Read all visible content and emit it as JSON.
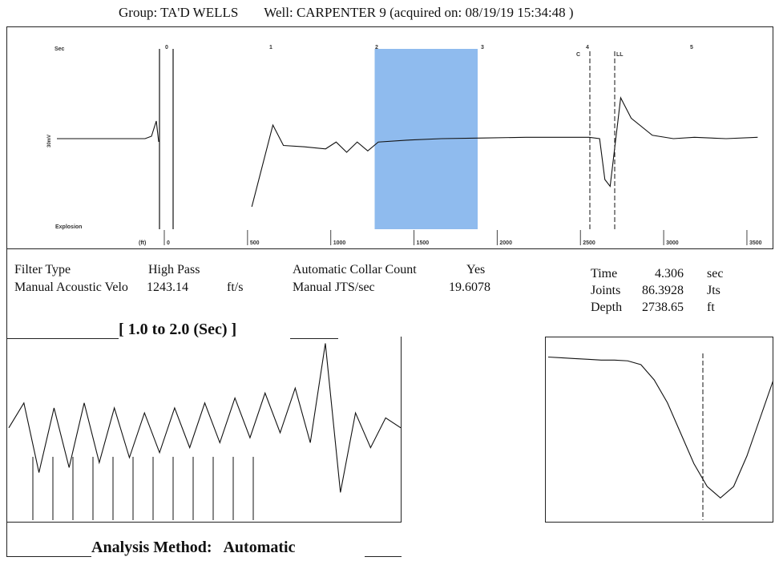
{
  "header": {
    "group_label": "Group: TA'D WELLS",
    "well_label": "Well: CARPENTER 9 (acquired on: 08/19/19 15:34:48 )"
  },
  "params": {
    "filter_type_label": "Filter Type",
    "filter_type_value": "High Pass",
    "manual_velocity_label": "Manual Acoustic Velo",
    "manual_velocity_value": "1243.14",
    "manual_velocity_unit": "ft/s",
    "auto_collar_label": "Automatic Collar Count",
    "auto_collar_value": "Yes",
    "manual_jts_label": "Manual JTS/sec",
    "manual_jts_value": "19.6078",
    "time_label": "Time",
    "time_value": "4.306",
    "time_unit": "sec",
    "joints_label": "Joints",
    "joints_value": "86.3928",
    "joints_unit": "Jts",
    "depth_label": "Depth",
    "depth_value": "2738.65",
    "depth_unit": "ft"
  },
  "zoom": {
    "title": "[ 1.0  to  2.0 (Sec) ]"
  },
  "footer": {
    "analysis_label": "Analysis Method:",
    "analysis_value": "Automatic"
  },
  "chart_data": [
    {
      "type": "line",
      "name": "main-acoustic-trace",
      "top_axis_label": "Sec",
      "top_ticks": [
        "0",
        "1",
        "2",
        "3",
        "4",
        "5"
      ],
      "bottom_axis_label": "(ft)",
      "bottom_ticks": [
        "0",
        "500",
        "1000",
        "1500",
        "2000",
        "2500",
        "3000",
        "3500"
      ],
      "y_label": "30mV",
      "left_annotation": "Explosion",
      "markers": [
        "C",
        "LL"
      ],
      "highlight_seconds": [
        1.0,
        2.0
      ],
      "highlight_color": "#8fbbee",
      "x_seconds": [
        -1.0,
        -0.1,
        0.0,
        0.8,
        1.0,
        1.1,
        1.3,
        1.5,
        1.6,
        1.7,
        1.8,
        1.9,
        2.0,
        2.3,
        2.6,
        3.0,
        3.4,
        3.8,
        4.0,
        4.1,
        4.15,
        4.2,
        4.3,
        4.4,
        4.6,
        4.8,
        5.0,
        5.3,
        5.6
      ],
      "y_values": [
        0.0,
        0.05,
        0.3,
        -1.0,
        0.2,
        -0.1,
        -0.12,
        -0.15,
        -0.05,
        -0.2,
        -0.05,
        -0.18,
        -0.05,
        -0.02,
        0.0,
        0.01,
        0.02,
        0.02,
        0.02,
        0.0,
        -0.6,
        -0.7,
        0.6,
        0.3,
        0.05,
        0.0,
        0.02,
        0.0,
        0.02
      ]
    },
    {
      "type": "line",
      "name": "zoom-trace",
      "x_range_seconds": [
        1.0,
        2.0
      ],
      "collar_marker_count": 12,
      "y_values": [
        0.1,
        0.6,
        -0.8,
        0.5,
        -0.7,
        0.6,
        -0.6,
        0.5,
        -0.5,
        0.4,
        -0.4,
        0.5,
        -0.3,
        0.6,
        -0.2,
        0.7,
        -0.1,
        0.8,
        0.0,
        0.9,
        -0.2,
        1.8,
        -1.2,
        0.4,
        -0.3,
        0.3,
        0.1
      ]
    },
    {
      "type": "line",
      "name": "collar-detail-trace",
      "y_values": [
        0.9,
        0.89,
        0.88,
        0.87,
        0.86,
        0.86,
        0.85,
        0.8,
        0.6,
        0.3,
        -0.1,
        -0.5,
        -0.8,
        -0.95,
        -0.8,
        -0.4,
        0.1,
        0.6
      ]
    }
  ]
}
